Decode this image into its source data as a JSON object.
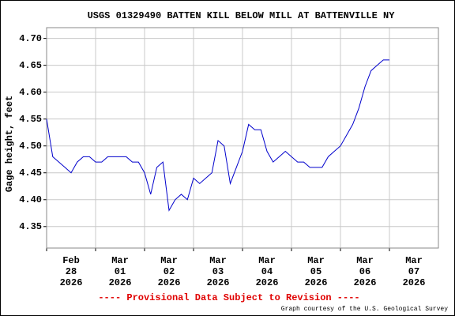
{
  "chart_data": {
    "type": "line",
    "title": "USGS 01329490 BATTEN KILL BELOW MILL AT BATTENVILLE NY",
    "y_label": "Gage height, feet",
    "footer": "---- Provisional Data Subject to Revision ----",
    "credit": "Graph courtesy of the U.S. Geological Survey",
    "x": [
      "2026-02-28T00:00",
      "2026-02-28T03:00",
      "2026-02-28T06:00",
      "2026-02-28T09:00",
      "2026-02-28T12:00",
      "2026-02-28T15:00",
      "2026-02-28T18:00",
      "2026-02-28T21:00",
      "2026-03-01T00:00",
      "2026-03-01T03:00",
      "2026-03-01T06:00",
      "2026-03-01T09:00",
      "2026-03-01T12:00",
      "2026-03-01T15:00",
      "2026-03-01T18:00",
      "2026-03-01T21:00",
      "2026-03-02T00:00",
      "2026-03-02T03:00",
      "2026-03-02T06:00",
      "2026-03-02T09:00",
      "2026-03-02T12:00",
      "2026-03-02T15:00",
      "2026-03-02T18:00",
      "2026-03-02T21:00",
      "2026-03-03T00:00",
      "2026-03-03T03:00",
      "2026-03-03T06:00",
      "2026-03-03T09:00",
      "2026-03-03T12:00",
      "2026-03-03T15:00",
      "2026-03-03T18:00",
      "2026-03-03T21:00",
      "2026-03-04T00:00",
      "2026-03-04T03:00",
      "2026-03-04T06:00",
      "2026-03-04T09:00",
      "2026-03-04T12:00",
      "2026-03-04T15:00",
      "2026-03-04T18:00",
      "2026-03-04T21:00",
      "2026-03-05T00:00",
      "2026-03-05T03:00",
      "2026-03-05T06:00",
      "2026-03-05T09:00",
      "2026-03-05T12:00",
      "2026-03-05T15:00",
      "2026-03-05T18:00",
      "2026-03-05T21:00",
      "2026-03-06T00:00",
      "2026-03-06T03:00",
      "2026-03-06T06:00",
      "2026-03-06T09:00",
      "2026-03-06T12:00",
      "2026-03-06T15:00",
      "2026-03-06T18:00",
      "2026-03-06T21:00",
      "2026-03-07T00:00"
    ],
    "series": [
      {
        "color": "#0000cc",
        "values": [
          4.55,
          4.48,
          4.47,
          4.46,
          4.45,
          4.47,
          4.48,
          4.48,
          4.47,
          4.47,
          4.48,
          4.48,
          4.48,
          4.48,
          4.47,
          4.47,
          4.45,
          4.41,
          4.46,
          4.47,
          4.38,
          4.4,
          4.41,
          4.4,
          4.44,
          4.43,
          4.44,
          4.45,
          4.51,
          4.5,
          4.43,
          4.46,
          4.49,
          4.54,
          4.53,
          4.53,
          4.49,
          4.47,
          4.48,
          4.49,
          4.48,
          4.47,
          4.47,
          4.46,
          4.46,
          4.46,
          4.48,
          4.49,
          4.5,
          4.52,
          4.54,
          4.57,
          4.61,
          4.64,
          4.65,
          4.66,
          4.66
        ]
      }
    ],
    "xlim": [
      "2026-02-28T00:00",
      "2026-03-08T00:00"
    ],
    "xticks": [
      {
        "value": "2026-02-28T00:00",
        "label": [
          "Feb",
          "28",
          "2026"
        ]
      },
      {
        "value": "2026-03-01T00:00",
        "label": [
          "Mar",
          "01",
          "2026"
        ]
      },
      {
        "value": "2026-03-02T00:00",
        "label": [
          "Mar",
          "02",
          "2026"
        ]
      },
      {
        "value": "2026-03-03T00:00",
        "label": [
          "Mar",
          "03",
          "2026"
        ]
      },
      {
        "value": "2026-03-04T00:00",
        "label": [
          "Mar",
          "04",
          "2026"
        ]
      },
      {
        "value": "2026-03-05T00:00",
        "label": [
          "Mar",
          "05",
          "2026"
        ]
      },
      {
        "value": "2026-03-06T00:00",
        "label": [
          "Mar",
          "06",
          "2026"
        ]
      },
      {
        "value": "2026-03-07T00:00",
        "label": [
          "Mar",
          "07",
          "2026"
        ]
      }
    ],
    "ylim": [
      4.31,
      4.72
    ],
    "yticks": [
      {
        "value": 4.35,
        "label": "4.35"
      },
      {
        "value": 4.4,
        "label": "4.40"
      },
      {
        "value": 4.45,
        "label": "4.45"
      },
      {
        "value": 4.5,
        "label": "4.50"
      },
      {
        "value": 4.55,
        "label": "4.55"
      },
      {
        "value": 4.6,
        "label": "4.60"
      },
      {
        "value": 4.65,
        "label": "4.65"
      },
      {
        "value": 4.7,
        "label": "4.70"
      }
    ],
    "grid": true
  }
}
